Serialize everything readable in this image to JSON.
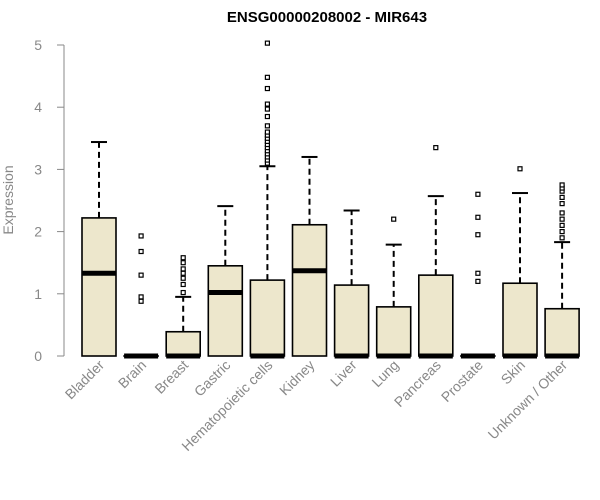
{
  "chart_data": {
    "type": "boxplot",
    "title": "ENSG00000208002 - MIR643",
    "xlabel": "",
    "ylabel": "Expression",
    "ylim": [
      0,
      5
    ],
    "yticks": [
      0,
      1,
      2,
      3,
      4,
      5
    ],
    "categories": [
      "Bladder",
      "Brain",
      "Breast",
      "Gastric",
      "Hematopoietic cells",
      "Kidney",
      "Liver",
      "Lung",
      "Pancreas",
      "Prostate",
      "Skin",
      "Unknown / Other"
    ],
    "boxes": [
      {
        "min": 0,
        "q1": 0,
        "median": 1.33,
        "q3": 2.22,
        "max": 3.44,
        "outliers": []
      },
      {
        "min": 0,
        "q1": 0,
        "median": 0,
        "q3": 0,
        "max": 0,
        "outliers": [
          0.88,
          0.95,
          1.3,
          1.68,
          1.93
        ]
      },
      {
        "min": 0,
        "q1": 0,
        "median": 0,
        "q3": 0.39,
        "max": 0.95,
        "outliers": [
          1.02,
          1.15,
          1.25,
          1.33,
          1.4,
          1.5,
          1.58
        ]
      },
      {
        "min": 0,
        "q1": 0,
        "median": 1.02,
        "q3": 1.45,
        "max": 2.41,
        "outliers": []
      },
      {
        "min": 0,
        "q1": 0,
        "median": 0,
        "q3": 1.22,
        "max": 3.05,
        "outliers": [
          3.1,
          3.15,
          3.2,
          3.25,
          3.3,
          3.35,
          3.4,
          3.45,
          3.5,
          3.55,
          3.6,
          3.7,
          3.85,
          3.97,
          4.05,
          4.3,
          4.48,
          5.03
        ]
      },
      {
        "min": 0,
        "q1": 0,
        "median": 1.37,
        "q3": 2.11,
        "max": 3.2,
        "outliers": []
      },
      {
        "min": 0,
        "q1": 0,
        "median": 0,
        "q3": 1.14,
        "max": 2.34,
        "outliers": []
      },
      {
        "min": 0,
        "q1": 0,
        "median": 0,
        "q3": 0.79,
        "max": 1.79,
        "outliers": [
          2.2
        ]
      },
      {
        "min": 0,
        "q1": 0,
        "median": 0,
        "q3": 1.3,
        "max": 2.57,
        "outliers": [
          3.35
        ]
      },
      {
        "min": 0,
        "q1": 0,
        "median": 0,
        "q3": 0,
        "max": 0,
        "outliers": [
          1.2,
          1.33,
          1.95,
          2.23,
          2.6
        ]
      },
      {
        "min": 0,
        "q1": 0,
        "median": 0,
        "q3": 1.17,
        "max": 2.62,
        "outliers": [
          3.01
        ]
      },
      {
        "min": 0,
        "q1": 0,
        "median": 0,
        "q3": 0.76,
        "max": 1.83,
        "outliers": [
          1.9,
          2.0,
          2.1,
          2.2,
          2.3,
          2.45,
          2.55,
          2.65,
          2.7,
          2.75
        ]
      }
    ],
    "box_fill": "#ede7cc",
    "box_stroke": "#000000",
    "outlier_style": "small-open-square",
    "grid": false,
    "legend": "none"
  }
}
